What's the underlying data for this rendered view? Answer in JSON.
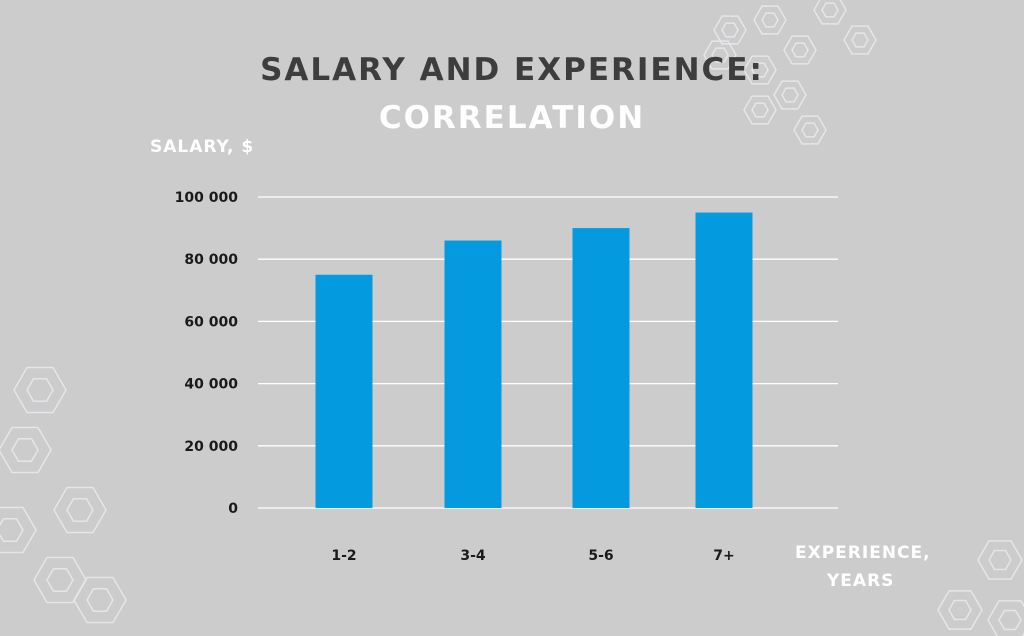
{
  "chart_data": {
    "type": "bar",
    "title": "SALARY AND EXPERIENCE:",
    "subtitle": "CORRELATION",
    "ylabel": "SALARY, $",
    "xlabel": "EXPERIENCE, YEARS",
    "xlabel_lines": [
      "EXPERIENCE,",
      "YEARS"
    ],
    "categories": [
      "1-2",
      "3-4",
      "5-6",
      "7+"
    ],
    "values": [
      75000,
      86000,
      90000,
      95000
    ],
    "ylim": [
      0,
      100000
    ],
    "yticks": [
      0,
      20000,
      40000,
      60000,
      80000,
      100000
    ],
    "ytick_labels": [
      "0",
      "20 000",
      "40 000",
      "60 000",
      "80 000",
      "100 000"
    ],
    "grid": true,
    "bar_color": "#039ae0",
    "grid_color": "#ffffff",
    "background": "#cccccc"
  }
}
